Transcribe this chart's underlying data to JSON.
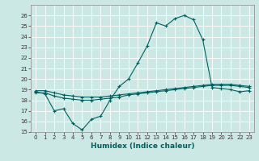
{
  "xlabel": "Humidex (Indice chaleur)",
  "bg_color": "#cce8e4",
  "grid_color": "#b0d8d4",
  "line_color": "#006060",
  "xlim": [
    -0.5,
    23.5
  ],
  "ylim": [
    15,
    27
  ],
  "yticks": [
    15,
    16,
    17,
    18,
    19,
    20,
    21,
    22,
    23,
    24,
    25,
    26
  ],
  "xticks": [
    0,
    1,
    2,
    3,
    4,
    5,
    6,
    7,
    8,
    9,
    10,
    11,
    12,
    13,
    14,
    15,
    16,
    17,
    18,
    19,
    20,
    21,
    22,
    23
  ],
  "line1_x": [
    0,
    1,
    2,
    3,
    4,
    5,
    6,
    7,
    8,
    9,
    10,
    11,
    12,
    13,
    14,
    15,
    16,
    17,
    18,
    19,
    20,
    21,
    22,
    23
  ],
  "line1_y": [
    18.8,
    18.6,
    17.0,
    17.2,
    15.8,
    15.2,
    16.2,
    16.5,
    18.0,
    19.3,
    20.0,
    21.5,
    23.1,
    25.3,
    25.0,
    25.7,
    26.0,
    25.6,
    23.7,
    19.2,
    19.1,
    19.0,
    18.8,
    18.9
  ],
  "line2_x": [
    0,
    1,
    2,
    3,
    4,
    5,
    6,
    7,
    8,
    9,
    10,
    11,
    12,
    13,
    14,
    15,
    16,
    17,
    18,
    19,
    20,
    21,
    22,
    23
  ],
  "line2_y": [
    18.9,
    18.9,
    18.7,
    18.5,
    18.4,
    18.3,
    18.3,
    18.3,
    18.4,
    18.5,
    18.6,
    18.7,
    18.8,
    18.9,
    19.0,
    19.1,
    19.2,
    19.3,
    19.4,
    19.5,
    19.5,
    19.5,
    19.4,
    19.3
  ],
  "line3_x": [
    0,
    1,
    2,
    3,
    4,
    5,
    6,
    7,
    8,
    9,
    10,
    11,
    12,
    13,
    14,
    15,
    16,
    17,
    18,
    19,
    20,
    21,
    22,
    23
  ],
  "line3_y": [
    18.7,
    18.7,
    18.4,
    18.2,
    18.1,
    18.0,
    18.0,
    18.1,
    18.2,
    18.3,
    18.5,
    18.6,
    18.7,
    18.8,
    18.9,
    19.0,
    19.1,
    19.2,
    19.3,
    19.4,
    19.4,
    19.4,
    19.3,
    19.2
  ]
}
